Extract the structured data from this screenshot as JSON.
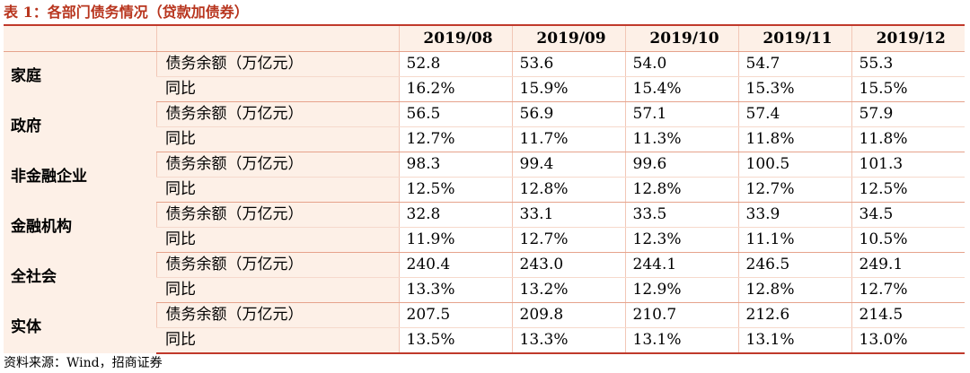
{
  "title": "表 1：各部门债务情况（贷款加债券）",
  "columns": [
    "2019/08",
    "2019/09",
    "2019/10",
    "2019/11",
    "2019/12"
  ],
  "groups": [
    {
      "name": "家庭",
      "rows": [
        {
          "metric": "债务余额（万亿元）",
          "values": [
            "52.8",
            "53.6",
            "54.0",
            "54.7",
            "55.3"
          ]
        },
        {
          "metric": "同比",
          "values": [
            "16.2%",
            "15.9%",
            "15.4%",
            "15.3%",
            "15.5%"
          ]
        }
      ]
    },
    {
      "name": "政府",
      "rows": [
        {
          "metric": "债务余额（万亿元）",
          "values": [
            "56.5",
            "56.9",
            "57.1",
            "57.4",
            "57.9"
          ]
        },
        {
          "metric": "同比",
          "values": [
            "12.7%",
            "11.7%",
            "11.3%",
            "11.8%",
            "11.8%"
          ]
        }
      ]
    },
    {
      "name": "非金融企业",
      "rows": [
        {
          "metric": "债务余额（万亿元）",
          "values": [
            "98.3",
            "99.4",
            "99.6",
            "100.5",
            "101.3"
          ]
        },
        {
          "metric": "同比",
          "values": [
            "12.5%",
            "12.8%",
            "12.8%",
            "12.7%",
            "12.5%"
          ]
        }
      ]
    },
    {
      "name": "金融机构",
      "rows": [
        {
          "metric": "债务余额（万亿元）",
          "values": [
            "32.8",
            "33.1",
            "33.5",
            "33.9",
            "34.5"
          ]
        },
        {
          "metric": "同比",
          "values": [
            "11.9%",
            "12.7%",
            "12.3%",
            "11.1%",
            "10.5%"
          ]
        }
      ]
    },
    {
      "name": "全社会",
      "rows": [
        {
          "metric": "债务余额（万亿元）",
          "values": [
            "240.4",
            "243.0",
            "244.1",
            "246.5",
            "249.1"
          ]
        },
        {
          "metric": "同比",
          "values": [
            "13.3%",
            "13.2%",
            "12.9%",
            "12.8%",
            "12.7%"
          ]
        }
      ]
    },
    {
      "name": "实体",
      "rows": [
        {
          "metric": "债务余额（万亿元）",
          "values": [
            "207.5",
            "209.8",
            "210.7",
            "212.6",
            "214.5"
          ]
        },
        {
          "metric": "同比",
          "values": [
            "13.5%",
            "13.3%",
            "13.1%",
            "13.1%",
            "13.0%"
          ]
        }
      ]
    }
  ],
  "source": "资料来源：Wind，招商证券",
  "colors": {
    "title": "#B8351E",
    "header_bg": "#FDF0E7",
    "rule": "#C0392B"
  }
}
